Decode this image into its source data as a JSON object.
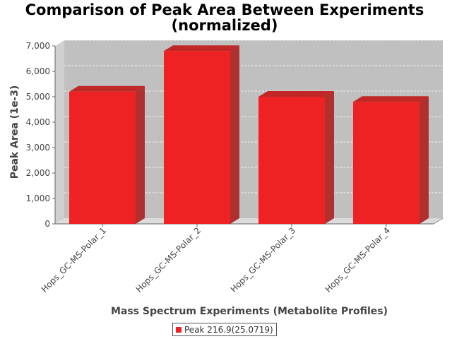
{
  "chart_data": {
    "type": "bar",
    "title_line1": "Comparison of Peak Area Between Experiments",
    "title_line2": "(normalized)",
    "xlabel": "Mass Spectrum Experiments (Metabolite Profiles)",
    "ylabel": "Peak Area (1e-3)",
    "categories": [
      "Hops_GC-MS-Polar_1",
      "Hops_GC-MS-Polar_2",
      "Hops_GC-MS-Polar_3",
      "Hops_GC-MS-Polar_4"
    ],
    "series": [
      {
        "name": "Peak 216.9(25.0719)",
        "values": [
          5200,
          6800,
          5000,
          4800
        ],
        "color": "#ee2222"
      }
    ],
    "ylim": [
      0,
      7000
    ],
    "yticks": [
      "0",
      "1,000",
      "2,000",
      "3,000",
      "4,000",
      "5,000",
      "6,000",
      "7,000"
    ],
    "grid": true,
    "legend_position": "bottom",
    "plot_background": "#c0c0c0"
  }
}
